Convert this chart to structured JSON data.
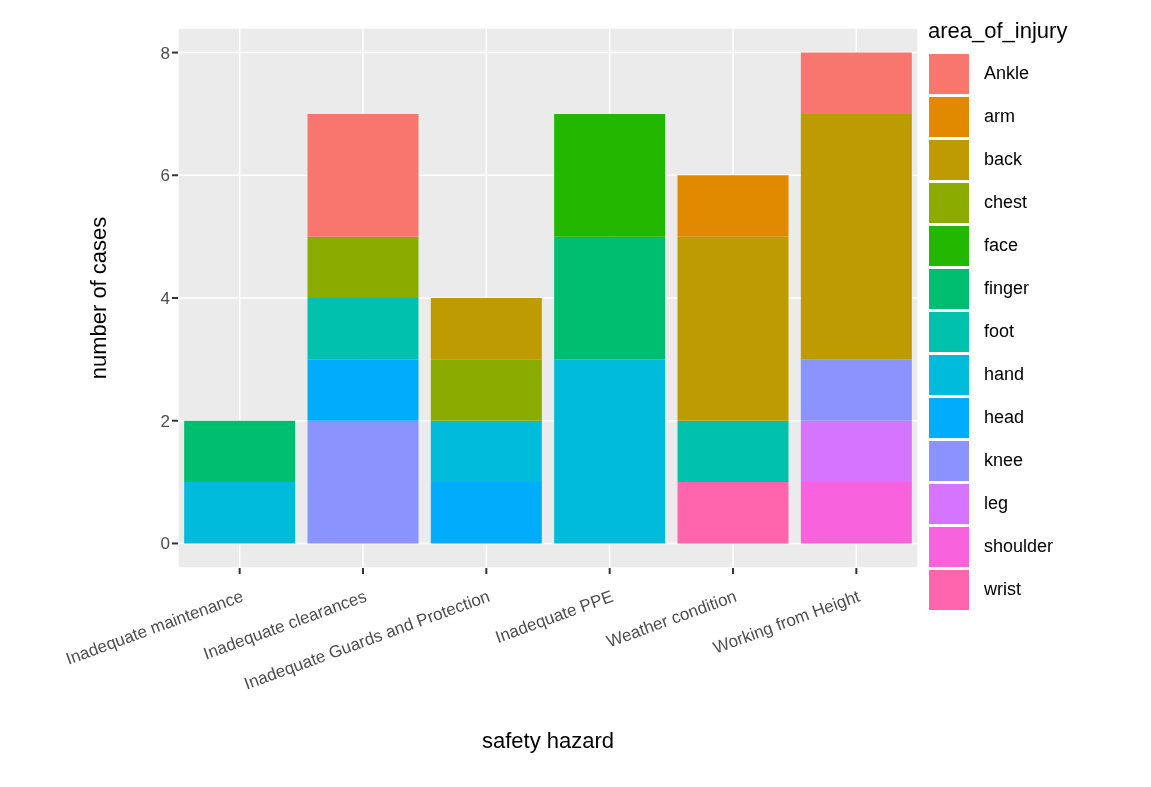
{
  "chart_data": {
    "type": "bar",
    "stacked": true,
    "xlabel": "safety hazard",
    "ylabel": "number of cases",
    "legend_title": "area_of_injury",
    "legend": "right",
    "grid": true,
    "categories": [
      "Inadequate maintenance",
      "Inadequate clearances",
      "Inadequate Guards and Protection",
      "Inadequate PPE",
      "Weather condition",
      "Working from Height"
    ],
    "ylim": [
      -0.4,
      8.4
    ],
    "yticks": [
      0,
      2,
      4,
      6,
      8
    ],
    "series": [
      {
        "name": "wrist",
        "color": "#ff65ac",
        "values": [
          null,
          null,
          null,
          null,
          1,
          null
        ]
      },
      {
        "name": "shoulder",
        "color": "#f962dd",
        "values": [
          null,
          null,
          null,
          null,
          null,
          1
        ]
      },
      {
        "name": "leg",
        "color": "#d575fe",
        "values": [
          null,
          null,
          null,
          null,
          null,
          1
        ]
      },
      {
        "name": "knee",
        "color": "#8b93ff",
        "values": [
          null,
          2,
          null,
          null,
          null,
          1
        ]
      },
      {
        "name": "head",
        "color": "#00acfc",
        "values": [
          null,
          1,
          1,
          null,
          null,
          null
        ]
      },
      {
        "name": "hand",
        "color": "#00bbda",
        "values": [
          1,
          null,
          1,
          3,
          null,
          null
        ]
      },
      {
        "name": "foot",
        "color": "#00c1ab",
        "values": [
          null,
          1,
          null,
          null,
          1,
          null
        ]
      },
      {
        "name": "finger",
        "color": "#00be70",
        "values": [
          1,
          null,
          null,
          2,
          null,
          null
        ]
      },
      {
        "name": "face",
        "color": "#24b700",
        "values": [
          null,
          null,
          null,
          2,
          null,
          null
        ]
      },
      {
        "name": "chest",
        "color": "#8cab00",
        "values": [
          null,
          1,
          1,
          null,
          null,
          null
        ]
      },
      {
        "name": "back",
        "color": "#be9c00",
        "values": [
          null,
          null,
          1,
          null,
          3,
          4
        ]
      },
      {
        "name": "arm",
        "color": "#e18a00",
        "values": [
          null,
          null,
          null,
          null,
          1,
          null
        ]
      },
      {
        "name": "Ankle",
        "color": "#f8766d",
        "values": [
          null,
          2,
          null,
          null,
          null,
          1
        ]
      }
    ]
  }
}
